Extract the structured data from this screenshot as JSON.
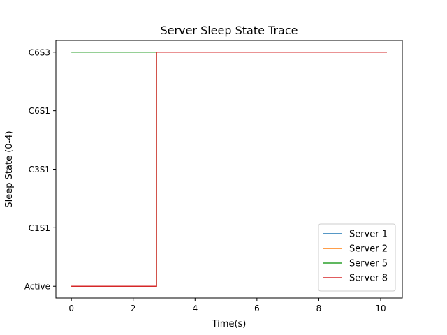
{
  "chart_data": {
    "type": "line",
    "title": "Server Sleep State Trace",
    "xlabel": "Time(s)",
    "ylabel": "Sleep State (0-4)",
    "xlim": [
      -0.5,
      10.7
    ],
    "ylim": [
      -0.2,
      4.2
    ],
    "x_ticks": [
      0,
      2,
      4,
      6,
      8,
      10
    ],
    "x_tick_labels": [
      "0",
      "2",
      "4",
      "6",
      "8",
      "10"
    ],
    "y_ticks": [
      0,
      1,
      2,
      3,
      4
    ],
    "y_tick_labels": [
      "Active",
      "C1S1",
      "C3S1",
      "C6S1",
      "C6S3"
    ],
    "grid": false,
    "legend_position": "lower-right",
    "series": [
      {
        "name": "Server 1",
        "color": "#1f77b4",
        "step": "post",
        "x": [
          0,
          2.75,
          10.2
        ],
        "y": [
          0,
          4,
          4
        ]
      },
      {
        "name": "Server 2",
        "color": "#ff7f0e",
        "step": "post",
        "x": [
          0,
          2.75,
          10.2
        ],
        "y": [
          0,
          4,
          4
        ]
      },
      {
        "name": "Server 5",
        "color": "#2ca02c",
        "step": "post",
        "x": [
          0,
          10.2
        ],
        "y": [
          4,
          4
        ]
      },
      {
        "name": "Server 8",
        "color": "#d62728",
        "step": "post",
        "x": [
          0,
          2.75,
          10.2
        ],
        "y": [
          0,
          4,
          4
        ]
      }
    ]
  }
}
